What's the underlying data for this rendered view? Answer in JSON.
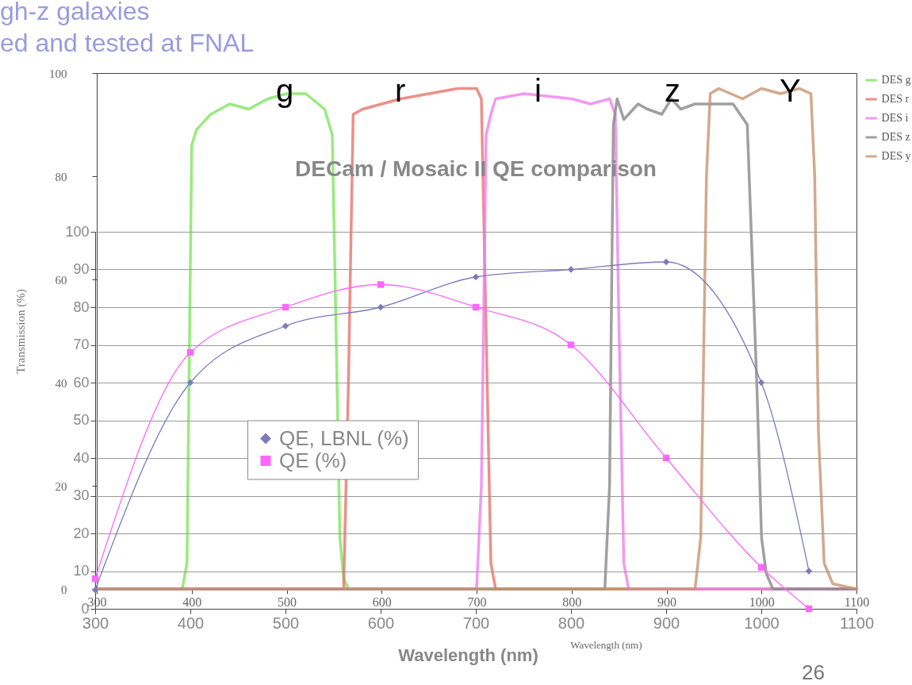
{
  "chart_data": [
    {
      "type": "line",
      "xlabel": "Wavelength (nm)",
      "ylabel": "Transmission (%)",
      "xlim": [
        300,
        1100
      ],
      "ylim": [
        0,
        100
      ],
      "xticks": [
        300,
        400,
        500,
        600,
        700,
        800,
        900,
        1000,
        1100
      ],
      "yticks": [
        0,
        20,
        40,
        60,
        80,
        100
      ],
      "grid": false,
      "legend": "right",
      "line_style": "solid",
      "marker": "none",
      "annotations": [
        "gh-z galaxies",
        "ed and tested at FNAL",
        "g",
        "r",
        "i",
        "z",
        "Y"
      ],
      "series": [
        {
          "name": "DES g",
          "color": "#7fe55f",
          "x": [
            300,
            390,
            395,
            400,
            405,
            420,
            440,
            460,
            480,
            500,
            520,
            540,
            548,
            552,
            556,
            560,
            565,
            1100
          ],
          "values": [
            0,
            0,
            5,
            86,
            89,
            92,
            94,
            93,
            95,
            96,
            96,
            93,
            88,
            50,
            10,
            2,
            0,
            0
          ]
        },
        {
          "name": "DES r",
          "color": "#e8736a",
          "x": [
            300,
            560,
            565,
            570,
            580,
            600,
            620,
            650,
            680,
            700,
            705,
            710,
            715,
            720,
            1100
          ],
          "values": [
            0,
            0,
            40,
            92,
            93,
            94,
            95,
            96,
            97,
            97,
            95,
            50,
            5,
            0,
            0
          ]
        },
        {
          "name": "DES i",
          "color": "#ee80ee",
          "x": [
            300,
            700,
            705,
            710,
            715,
            720,
            750,
            800,
            820,
            840,
            846,
            850,
            855,
            860,
            1100
          ],
          "values": [
            0,
            0,
            20,
            88,
            92,
            95,
            96,
            95,
            94,
            95,
            92,
            50,
            5,
            0,
            0
          ]
        },
        {
          "name": "DES z",
          "color": "#888888",
          "x": [
            300,
            835,
            840,
            844,
            848,
            855,
            870,
            880,
            895,
            905,
            915,
            930,
            950,
            970,
            985,
            995,
            1000,
            1005,
            1012,
            1100
          ],
          "values": [
            0,
            0,
            20,
            90,
            95,
            91,
            94,
            93,
            92,
            95,
            93,
            94,
            94,
            94,
            90,
            40,
            10,
            3,
            0,
            0
          ]
        },
        {
          "name": "DES y",
          "color": "#c89470",
          "x": [
            300,
            930,
            936,
            942,
            946,
            955,
            980,
            1000,
            1020,
            1040,
            1052,
            1056,
            1060,
            1066,
            1075,
            1100
          ],
          "values": [
            0,
            0,
            10,
            80,
            96,
            97,
            95,
            97,
            96,
            97,
            96,
            80,
            30,
            5,
            1,
            0
          ]
        }
      ]
    },
    {
      "type": "line",
      "title": "DECam / Mosaic II QE comparison",
      "xlabel": "Wavelength (nm)",
      "xlim": [
        300,
        1100
      ],
      "ylim": [
        0,
        100
      ],
      "xticks": [
        300,
        400,
        500,
        600,
        700,
        800,
        900,
        1000,
        1100
      ],
      "yticks": [
        0,
        10,
        20,
        30,
        40,
        50,
        60,
        70,
        80,
        90,
        100
      ],
      "grid": "y",
      "legend": "left",
      "line_style": "solid",
      "annotations": [
        "26"
      ],
      "series": [
        {
          "name": "QE, LBNL (%)",
          "color": "#7b7bbf",
          "marker": "diamond",
          "x": [
            300,
            400,
            500,
            600,
            700,
            800,
            900,
            1000,
            1050
          ],
          "values": [
            5,
            60,
            75,
            80,
            88,
            90,
            92,
            60,
            10
          ]
        },
        {
          "name": "QE (%)",
          "color": "#ff66ff",
          "marker": "square",
          "x": [
            300,
            400,
            500,
            600,
            700,
            800,
            900,
            1000,
            1050
          ],
          "values": [
            8,
            68,
            80,
            86,
            80,
            70,
            40,
            11,
            0
          ]
        }
      ]
    }
  ]
}
